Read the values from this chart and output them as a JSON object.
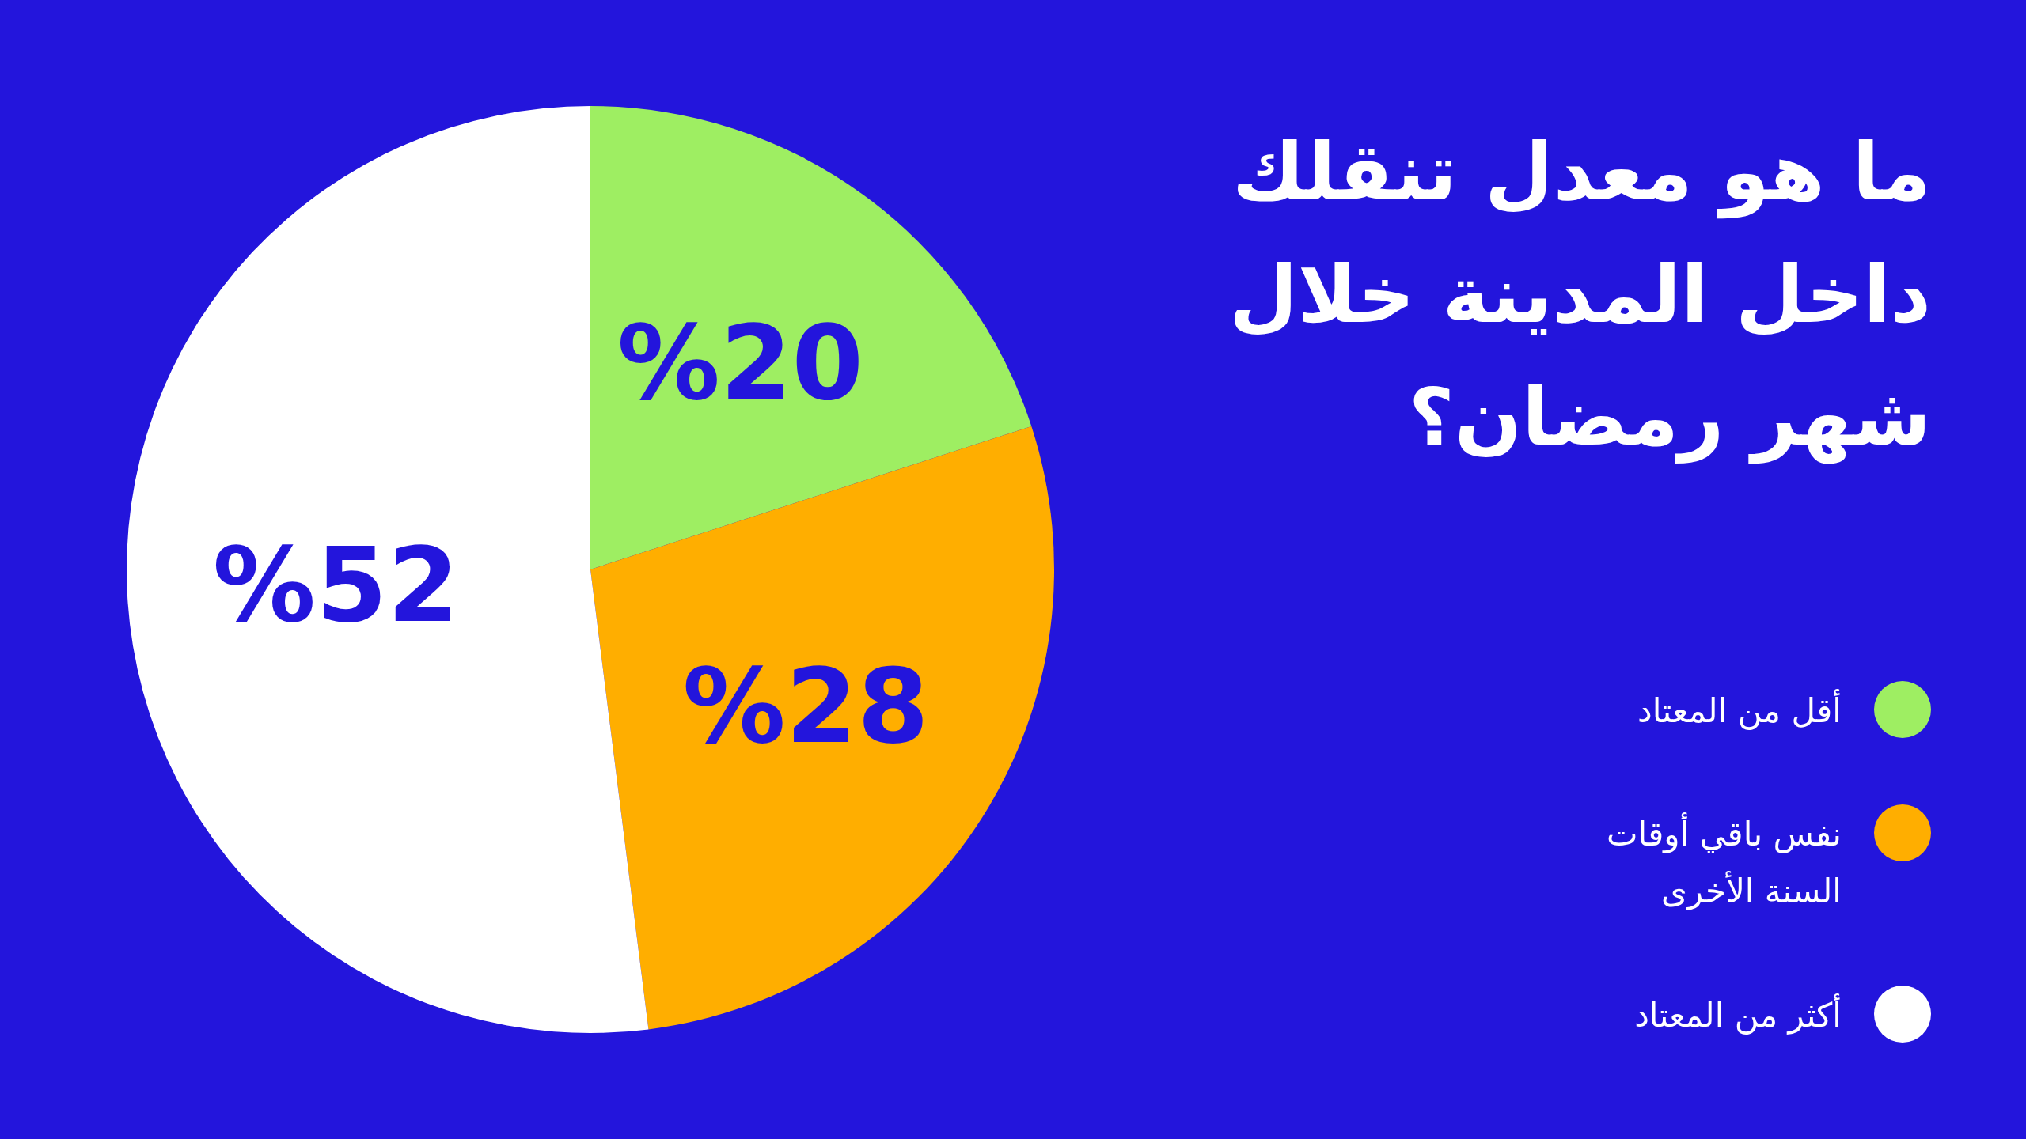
{
  "chart_data": {
    "type": "pie",
    "title": "ما  هو معدل تنقلك داخل المدينة خلال شهر رمضان؟",
    "categories": [
      "أقل من المعتاد",
      "نفس باقي أوقات السنة الأخرى",
      "أكثر من المعتاد"
    ],
    "values": [
      20,
      28,
      52
    ],
    "colors": [
      "#9eee62",
      "#ffae00",
      "#ffffff"
    ],
    "value_labels": [
      "%20",
      "%28",
      "%52"
    ],
    "legend": "right"
  }
}
